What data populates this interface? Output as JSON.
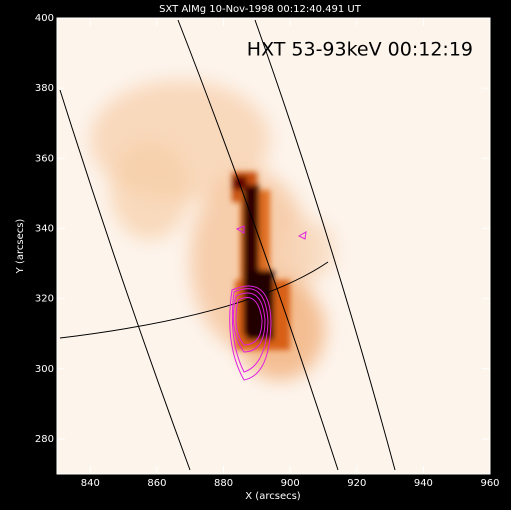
{
  "chart_data": {
    "type": "image",
    "title": "SXT AlMg 10-Nov-1998 00:12:40.491 UT",
    "annotation": "HXT 53-93keV 00:12:19",
    "x_label": "X (arcsecs)",
    "y_label": "Y (arcsecs)",
    "xlim": [
      830,
      960
    ],
    "ylim": [
      270,
      400
    ],
    "xticks": [
      840,
      860,
      880,
      900,
      920,
      940,
      960
    ],
    "yticks": [
      280,
      300,
      320,
      340,
      360,
      380,
      400
    ]
  }
}
